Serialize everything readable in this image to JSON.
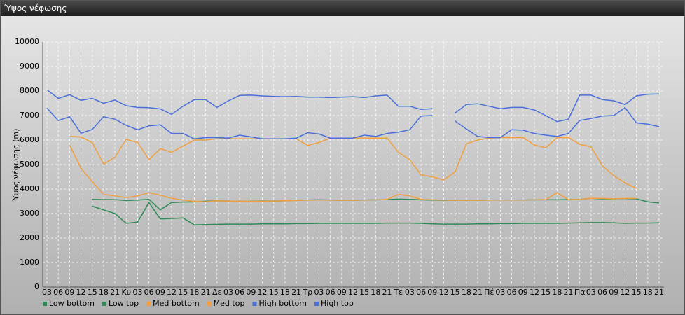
{
  "chart_data": {
    "type": "line",
    "title": "Ύψος νέφωσης",
    "y_label": "Ύψος νέφωσης (m)",
    "categories": [
      "03",
      "06",
      "09",
      "12",
      "15",
      "18",
      "21",
      "Κυ",
      "03",
      "06",
      "09",
      "12",
      "15",
      "18",
      "21",
      "Δε",
      "03",
      "06",
      "09",
      "12",
      "15",
      "18",
      "21",
      "Τρ",
      "03",
      "06",
      "09",
      "12",
      "15",
      "18",
      "21",
      "Τε",
      "03",
      "06",
      "09",
      "12",
      "15",
      "18",
      "21",
      "Πέ",
      "03",
      "06",
      "09",
      "12",
      "15",
      "18",
      "21",
      "Πα",
      "03",
      "06",
      "09",
      "12",
      "15",
      "18",
      "21"
    ],
    "ylim": [
      0,
      10000
    ],
    "yticks": [
      0,
      1000,
      2000,
      3000,
      4000,
      5000,
      6000,
      7000,
      8000,
      9000,
      10000
    ],
    "grid": true,
    "legend": "bottom",
    "series": [
      {
        "name": "Low bottom",
        "color": "#2e8b57",
        "values": [
          null,
          null,
          null,
          null,
          3300,
          3150,
          3000,
          2600,
          2650,
          3450,
          2780,
          2800,
          2820,
          2540,
          2550,
          2560,
          2570,
          2570,
          2570,
          2580,
          2580,
          2580,
          2590,
          2590,
          2600,
          2600,
          2600,
          2600,
          2600,
          2600,
          2610,
          2610,
          2610,
          2600,
          2580,
          2570,
          2570,
          2570,
          2580,
          2580,
          2590,
          2590,
          2600,
          2600,
          2600,
          2600,
          2610,
          2620,
          2630,
          2630,
          2620,
          2600,
          2610,
          2610,
          2620
        ]
      },
      {
        "name": "Low top",
        "color": "#2e8b57",
        "values": [
          null,
          null,
          null,
          null,
          3580,
          3570,
          3570,
          3530,
          3550,
          3580,
          3150,
          3450,
          3470,
          3480,
          3500,
          3520,
          3510,
          3500,
          3500,
          3510,
          3510,
          3520,
          3540,
          3550,
          3560,
          3550,
          3540,
          3540,
          3550,
          3560,
          3570,
          3590,
          3580,
          3560,
          3550,
          3540,
          3540,
          3540,
          3540,
          3550,
          3550,
          3550,
          3550,
          3560,
          3560,
          3560,
          3570,
          3580,
          3620,
          3600,
          3600,
          3610,
          3600,
          3480,
          3430
        ]
      },
      {
        "name": "Med bottom",
        "color": "#f0a040",
        "values": [
          null,
          null,
          5800,
          4850,
          4300,
          3780,
          3720,
          3650,
          3720,
          3850,
          3750,
          3620,
          3550,
          3500,
          3480,
          3520,
          3510,
          3500,
          3500,
          3500,
          3510,
          3520,
          3530,
          3550,
          3550,
          3550,
          3540,
          3540,
          3550,
          3560,
          3580,
          3780,
          3720,
          3580,
          3560,
          3550,
          3540,
          3540,
          3540,
          3550,
          3550,
          3550,
          3550,
          3560,
          3570,
          3850,
          3570,
          3580,
          3620,
          3620,
          3600,
          3620,
          3620,
          null,
          null
        ]
      },
      {
        "name": "Med top",
        "color": "#f0a040",
        "values": [
          null,
          null,
          6150,
          6120,
          5900,
          5020,
          5300,
          6030,
          5900,
          5200,
          5650,
          5500,
          5750,
          6000,
          6000,
          6050,
          6050,
          6050,
          6050,
          6050,
          6050,
          6050,
          6050,
          5780,
          5900,
          6080,
          6080,
          6080,
          6080,
          6080,
          6080,
          5500,
          5200,
          4580,
          4500,
          4370,
          4700,
          5850,
          6000,
          6080,
          6100,
          6100,
          6100,
          5800,
          5680,
          6100,
          6100,
          5830,
          5720,
          4950,
          4550,
          4250,
          4030,
          null,
          null
        ]
      },
      {
        "name": "High bottom",
        "color": "#4a6fd8",
        "values": [
          7300,
          6800,
          6950,
          6280,
          6430,
          6950,
          6850,
          6600,
          6420,
          6580,
          6620,
          6270,
          6270,
          6050,
          6100,
          6100,
          6080,
          6200,
          6130,
          6050,
          6050,
          6050,
          6080,
          6300,
          6250,
          6080,
          6080,
          6080,
          6200,
          6150,
          6270,
          6320,
          6420,
          6980,
          7000,
          null,
          6780,
          6450,
          6150,
          6100,
          6100,
          6420,
          6400,
          6270,
          6200,
          6150,
          6270,
          6800,
          6880,
          6980,
          7000,
          7320,
          6700,
          6650,
          6550
        ]
      },
      {
        "name": "High top",
        "color": "#4a6fd8",
        "values": [
          8050,
          7700,
          7850,
          7620,
          7700,
          7500,
          7630,
          7400,
          7330,
          7320,
          7270,
          7050,
          7380,
          7650,
          7650,
          7330,
          7600,
          7820,
          7830,
          7800,
          7780,
          7770,
          7780,
          7750,
          7750,
          7730,
          7750,
          7770,
          7730,
          7800,
          7830,
          7380,
          7380,
          7250,
          7280,
          null,
          7100,
          7450,
          7480,
          7380,
          7280,
          7330,
          7330,
          7230,
          7000,
          6750,
          6850,
          7830,
          7830,
          7650,
          7600,
          7450,
          7800,
          7870,
          7880
        ]
      }
    ]
  }
}
